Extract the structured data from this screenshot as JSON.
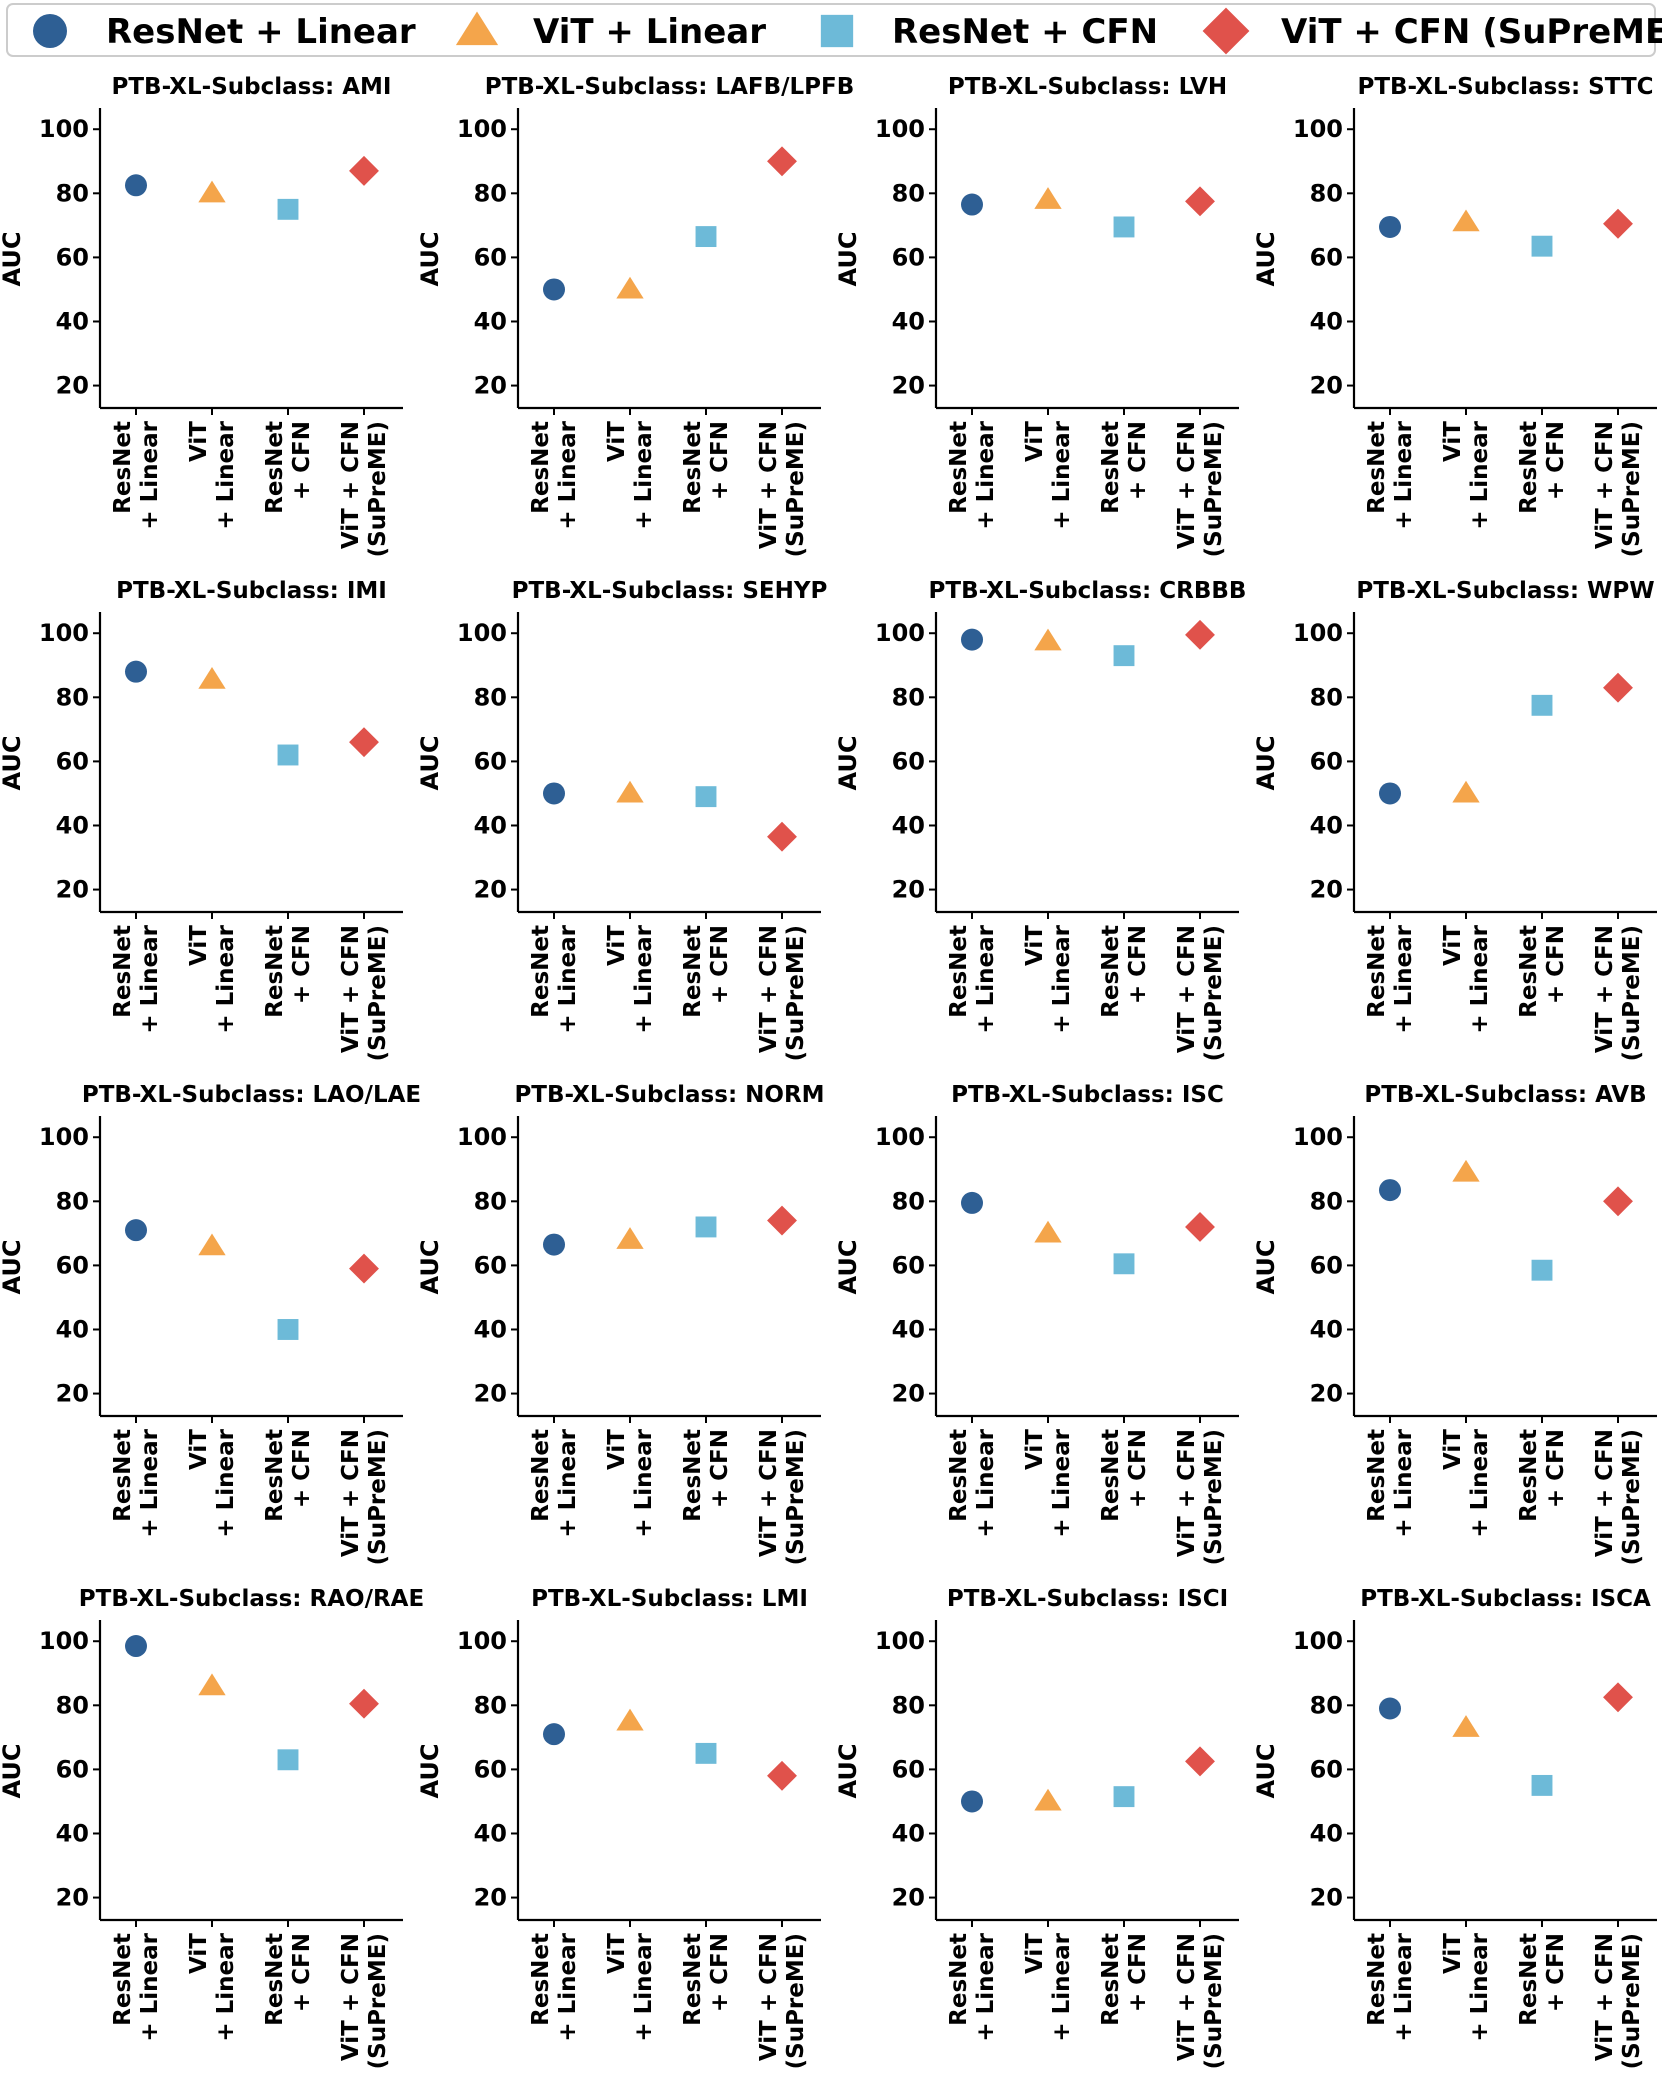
{
  "chart_data": {
    "type": "scatter",
    "legend": {
      "position": "top",
      "entries": [
        {
          "name": "ResNet + Linear",
          "marker": "circle",
          "color": "#2e5f94"
        },
        {
          "name": "ViT + Linear",
          "marker": "triangle",
          "color": "#f4a54b"
        },
        {
          "name": "ResNet + CFN",
          "marker": "square",
          "color": "#6dbad8"
        },
        {
          "name": "ViT + CFN (SuPreME)",
          "marker": "diamond",
          "color": "#e0524b"
        }
      ]
    },
    "categories": [
      [
        "ResNet",
        "+ Linear"
      ],
      [
        "ViT",
        "+ Linear"
      ],
      [
        "ResNet",
        "+ CFN"
      ],
      [
        "ViT + CFN",
        "(SuPreME)"
      ]
    ],
    "ylabel": "AUC",
    "ylim": [
      13,
      106
    ],
    "yticks": [
      20,
      40,
      60,
      80,
      100
    ],
    "panels": [
      {
        "title": "PTB-XL-Subclass: AMI",
        "values": [
          82.5,
          80,
          75,
          87
        ]
      },
      {
        "title": "PTB-XL-Subclass: LAFB/LPFB",
        "values": [
          50,
          50,
          66.5,
          90
        ]
      },
      {
        "title": "PTB-XL-Subclass: LVH",
        "values": [
          76.5,
          78,
          69.5,
          77.5
        ]
      },
      {
        "title": "PTB-XL-Subclass: STTC",
        "values": [
          69.5,
          71,
          63.5,
          70.5
        ]
      },
      {
        "title": "PTB-XL-Subclass: IMI",
        "values": [
          88,
          85.5,
          62,
          66
        ]
      },
      {
        "title": "PTB-XL-Subclass: SEHYP",
        "values": [
          50,
          50,
          49,
          36.5
        ]
      },
      {
        "title": "PTB-XL-Subclass: CRBBB",
        "values": [
          98,
          97.5,
          93,
          99.5
        ]
      },
      {
        "title": "PTB-XL-Subclass: WPW",
        "values": [
          50,
          50,
          77.5,
          83
        ]
      },
      {
        "title": "PTB-XL-Subclass: LAO/LAE",
        "values": [
          71,
          66,
          40,
          59
        ]
      },
      {
        "title": "PTB-XL-Subclass: NORM",
        "values": [
          66.5,
          68,
          72,
          74
        ]
      },
      {
        "title": "PTB-XL-Subclass: ISC",
        "values": [
          79.5,
          70,
          60.5,
          72
        ]
      },
      {
        "title": "PTB-XL-Subclass: AVB",
        "values": [
          83.5,
          89,
          58.5,
          80
        ]
      },
      {
        "title": "PTB-XL-Subclass: RAO/RAE",
        "values": [
          98.5,
          86,
          63,
          80.5
        ]
      },
      {
        "title": "PTB-XL-Subclass: LMI",
        "values": [
          71,
          75,
          65,
          58
        ]
      },
      {
        "title": "PTB-XL-Subclass: ISCI",
        "values": [
          50,
          50,
          51.5,
          62.5
        ]
      },
      {
        "title": "PTB-XL-Subclass: ISCA",
        "values": [
          79,
          73,
          55,
          82.5
        ]
      }
    ]
  }
}
